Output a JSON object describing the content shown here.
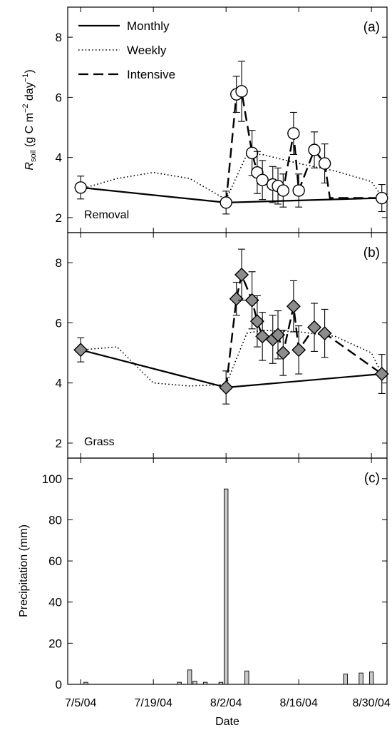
{
  "figure": {
    "y_axis_label_top_prefix": "R",
    "y_axis_label_top_sub": "soil",
    "y_axis_label_top_main": " (g C m",
    "y_axis_label_top_sup1": "−2",
    "y_axis_label_top_mid": " day",
    "y_axis_label_top_sup2": "−1",
    "y_axis_label_top_end": ")",
    "x_axis_label": "Date",
    "x_ticks": [
      "7/5/04",
      "7/19/04",
      "8/2/04",
      "8/16/04",
      "8/30/04"
    ]
  },
  "chart_data": [
    {
      "type": "line",
      "panel_tag": "(a)",
      "panel_text": "Removal",
      "ylim": [
        1.5,
        9
      ],
      "yticks": [
        2,
        4,
        6,
        8
      ],
      "xlim_days": [
        -2.5,
        59
      ],
      "legend": {
        "placement": "top-left",
        "entries": [
          "Monthly",
          "Weekly",
          "Intensive"
        ]
      },
      "series": [
        {
          "name": "Monthly",
          "style": "solid",
          "x": [
            "7/5/04",
            "8/2/04",
            "9/1/04"
          ],
          "y": [
            3.0,
            2.5,
            2.65
          ]
        },
        {
          "name": "Weekly",
          "style": "dotted",
          "x": [
            "7/5/04",
            "7/12/04",
            "7/19/04",
            "7/26/04",
            "8/2/04",
            "8/6/04",
            "8/9/04",
            "8/16/04",
            "8/23/04",
            "8/30/04",
            "9/1/04"
          ],
          "y": [
            2.95,
            3.3,
            3.5,
            3.3,
            2.6,
            4.1,
            4.1,
            3.8,
            3.55,
            3.2,
            2.7
          ]
        },
        {
          "name": "Intensive",
          "style": "dashed",
          "marker": "open-circle",
          "x": [
            "8/2/04",
            "8/4/04",
            "8/5/04",
            "8/7/04",
            "8/8/04",
            "8/9/04",
            "8/11/04",
            "8/12/04",
            "8/13/04",
            "8/15/04",
            "8/16/04",
            "8/19/04",
            "8/21/04",
            "8/22/04",
            "8/25/04",
            "8/27/04",
            "8/30/04",
            "9/1/04"
          ],
          "y": [
            2.5,
            6.1,
            6.2,
            4.15,
            3.5,
            3.25,
            3.1,
            3.05,
            2.9,
            4.8,
            2.9,
            4.25,
            3.8,
            2.65,
            2.65,
            2.65,
            2.65,
            2.65
          ]
        }
      ],
      "markers": {
        "x": [
          "7/5/04",
          "8/2/04",
          "8/4/04",
          "8/5/04",
          "8/7/04",
          "8/8/04",
          "8/9/04",
          "8/11/04",
          "8/12/04",
          "8/13/04",
          "8/15/04",
          "8/16/04",
          "8/19/04",
          "8/21/04",
          "9/1/04"
        ],
        "y": [
          3.0,
          2.5,
          6.1,
          6.2,
          4.15,
          3.5,
          3.25,
          3.1,
          3.05,
          2.9,
          4.8,
          2.9,
          4.25,
          3.8,
          2.65
        ],
        "err": [
          0.38,
          0.38,
          0.6,
          1.0,
          0.75,
          0.7,
          0.65,
          0.6,
          0.6,
          0.55,
          0.7,
          0.55,
          0.6,
          0.65,
          0.45
        ]
      }
    },
    {
      "type": "line",
      "panel_tag": "(b)",
      "panel_text": "Grass",
      "ylim": [
        1.5,
        9
      ],
      "yticks": [
        2,
        4,
        6,
        8
      ],
      "xlim_days": [
        -2.5,
        59
      ],
      "series": [
        {
          "name": "Monthly",
          "style": "solid",
          "x": [
            "7/5/04",
            "8/2/04",
            "9/1/04"
          ],
          "y": [
            5.1,
            3.85,
            4.3
          ]
        },
        {
          "name": "Weekly",
          "style": "dotted",
          "x": [
            "7/5/04",
            "7/12/04",
            "7/19/04",
            "7/26/04",
            "8/2/04",
            "8/6/04",
            "8/9/04",
            "8/16/04",
            "8/23/04",
            "8/30/04",
            "9/1/04"
          ],
          "y": [
            5.1,
            5.2,
            4.0,
            3.9,
            3.95,
            5.65,
            5.75,
            5.7,
            5.55,
            5.0,
            4.3
          ]
        },
        {
          "name": "Intensive",
          "style": "dashed",
          "marker": "filled-diamond",
          "x": [
            "8/2/04",
            "8/4/04",
            "8/5/04",
            "8/7/04",
            "8/8/04",
            "8/9/04",
            "8/11/04",
            "8/12/04",
            "8/13/04",
            "8/15/04",
            "8/16/04",
            "8/19/04",
            "8/21/04",
            "9/1/04"
          ],
          "y": [
            3.85,
            6.8,
            7.6,
            6.75,
            6.05,
            5.55,
            5.45,
            5.6,
            5.0,
            6.55,
            5.1,
            5.85,
            5.65,
            4.3
          ]
        }
      ],
      "markers": {
        "x": [
          "7/5/04",
          "8/2/04",
          "8/4/04",
          "8/5/04",
          "8/7/04",
          "8/8/04",
          "8/9/04",
          "8/11/04",
          "8/12/04",
          "8/13/04",
          "8/15/04",
          "8/16/04",
          "8/19/04",
          "8/21/04",
          "9/1/04"
        ],
        "y": [
          5.1,
          3.85,
          6.8,
          7.6,
          6.75,
          6.05,
          5.55,
          5.45,
          5.6,
          5.0,
          6.55,
          5.1,
          5.85,
          5.65,
          4.3
        ],
        "err": [
          0.4,
          0.55,
          0.55,
          0.85,
          0.95,
          0.85,
          0.8,
          0.8,
          0.8,
          0.75,
          0.85,
          0.8,
          0.8,
          0.8,
          0.65
        ]
      }
    },
    {
      "type": "bar",
      "panel_tag": "(c)",
      "ylabel": "Precipitation (mm)",
      "ylim": [
        0,
        110
      ],
      "yticks": [
        0,
        20,
        40,
        60,
        80,
        100
      ],
      "xlim_days": [
        -2.5,
        59
      ],
      "x": [
        "7/5/04",
        "7/6/04",
        "7/24/04",
        "7/26/04",
        "7/27/04",
        "7/29/04",
        "8/1/04",
        "8/2/04",
        "8/6/04",
        "8/25/04",
        "8/28/04",
        "8/30/04"
      ],
      "values": [
        0,
        1,
        1,
        7,
        1.5,
        1,
        1,
        95,
        6.5,
        5,
        5.5,
        6
      ]
    }
  ]
}
